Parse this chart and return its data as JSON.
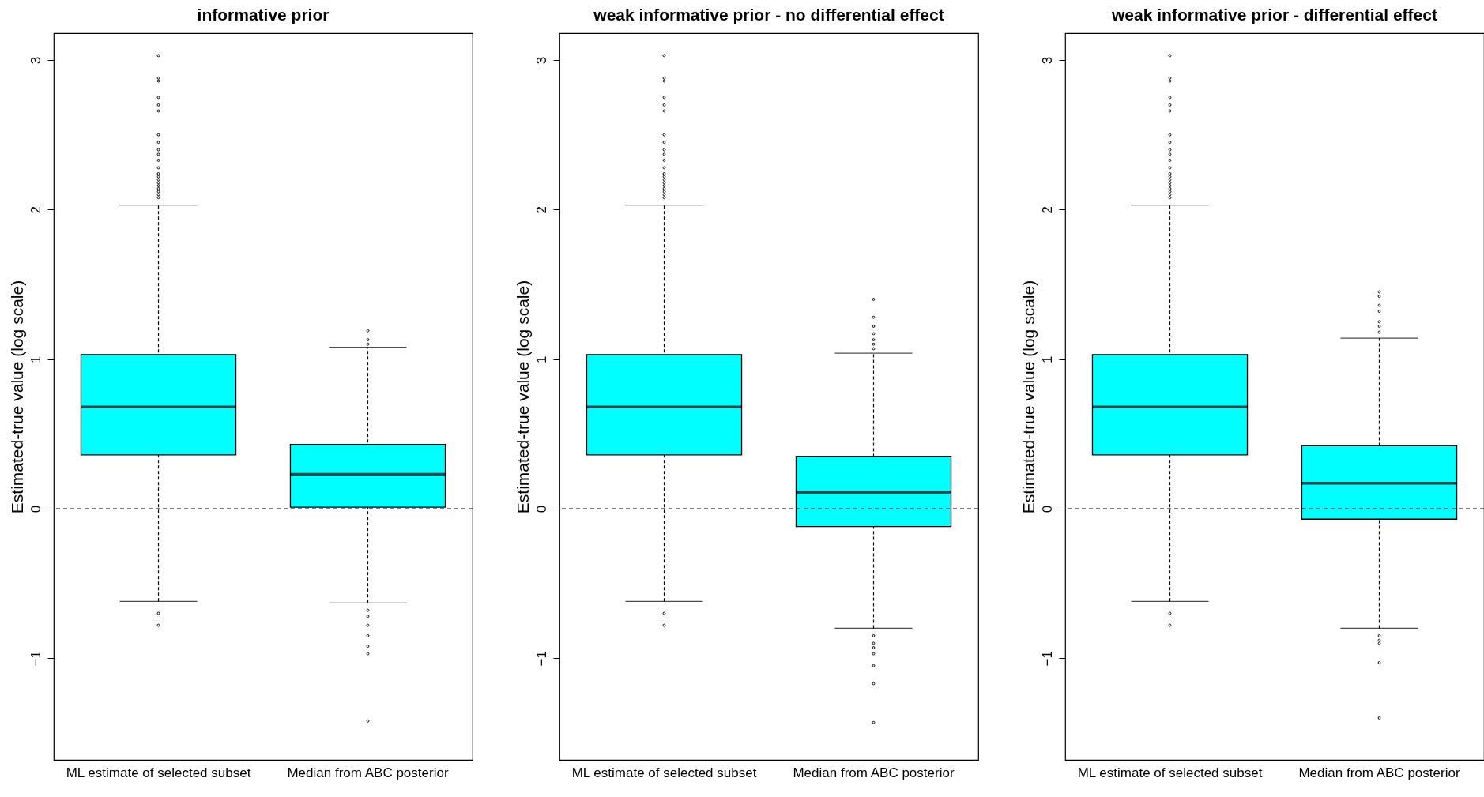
{
  "chart_data": [
    {
      "type": "box",
      "title": "informative prior",
      "ylabel": "Estimated-true value (log scale)",
      "categories": [
        "ML estimate of selected subset",
        "Median from ABC posterior"
      ],
      "color": "#00ffff",
      "ylim": [
        -1.68,
        3.18
      ],
      "yticks": [
        -1,
        0,
        1,
        2,
        3
      ],
      "ref_lines": [
        {
          "axis": "y",
          "value": 0,
          "line_style": "dashed"
        }
      ],
      "boxes": [
        {
          "low": -0.62,
          "q1": 0.36,
          "median": 0.68,
          "q3": 1.03,
          "high": 2.03,
          "outliers": [
            3.03,
            2.88,
            2.86,
            2.75,
            2.7,
            2.66,
            2.5,
            2.45,
            2.4,
            2.37,
            2.33,
            2.28,
            2.24,
            2.22,
            2.2,
            2.18,
            2.16,
            2.14,
            2.12,
            2.1,
            2.08,
            -0.7,
            -0.78
          ]
        },
        {
          "low": -0.63,
          "q1": 0.01,
          "median": 0.23,
          "q3": 0.43,
          "high": 1.08,
          "outliers": [
            1.19,
            1.13,
            1.1,
            -0.68,
            -0.72,
            -0.78,
            -0.85,
            -0.92,
            -0.97,
            -1.42
          ]
        }
      ]
    },
    {
      "type": "box",
      "title": "weak informative prior - no differential effect",
      "ylabel": "Estimated-true value (log scale)",
      "categories": [
        "ML estimate of selected subset",
        "Median from ABC posterior"
      ],
      "color": "#00ffff",
      "ylim": [
        -1.68,
        3.18
      ],
      "yticks": [
        -1,
        0,
        1,
        2,
        3
      ],
      "ref_lines": [
        {
          "axis": "y",
          "value": 0,
          "line_style": "dashed"
        }
      ],
      "boxes": [
        {
          "low": -0.62,
          "q1": 0.36,
          "median": 0.68,
          "q3": 1.03,
          "high": 2.03,
          "outliers": [
            3.03,
            2.88,
            2.86,
            2.75,
            2.7,
            2.66,
            2.5,
            2.45,
            2.4,
            2.37,
            2.33,
            2.28,
            2.24,
            2.22,
            2.2,
            2.18,
            2.16,
            2.14,
            2.12,
            2.1,
            2.08,
            -0.7,
            -0.78
          ]
        },
        {
          "low": -0.8,
          "q1": -0.12,
          "median": 0.11,
          "q3": 0.35,
          "high": 1.04,
          "outliers": [
            1.4,
            1.28,
            1.22,
            1.17,
            1.13,
            1.1,
            1.07,
            -0.85,
            -0.9,
            -0.93,
            -0.97,
            -1.05,
            -1.17,
            -1.43
          ]
        }
      ]
    },
    {
      "type": "box",
      "title": "weak informative prior - differential effect",
      "ylabel": "Estimated-true value (log scale)",
      "categories": [
        "ML estimate of selected subset",
        "Median from ABC posterior"
      ],
      "color": "#00ffff",
      "ylim": [
        -1.68,
        3.18
      ],
      "yticks": [
        -1,
        0,
        1,
        2,
        3
      ],
      "ref_lines": [
        {
          "axis": "y",
          "value": 0,
          "line_style": "dashed"
        }
      ],
      "boxes": [
        {
          "low": -0.62,
          "q1": 0.36,
          "median": 0.68,
          "q3": 1.03,
          "high": 2.03,
          "outliers": [
            3.03,
            2.88,
            2.86,
            2.75,
            2.7,
            2.66,
            2.5,
            2.45,
            2.4,
            2.37,
            2.33,
            2.28,
            2.24,
            2.22,
            2.2,
            2.18,
            2.16,
            2.14,
            2.12,
            2.1,
            2.08,
            -0.7,
            -0.78
          ]
        },
        {
          "low": -0.8,
          "q1": -0.07,
          "median": 0.17,
          "q3": 0.42,
          "high": 1.14,
          "outliers": [
            1.45,
            1.42,
            1.36,
            1.32,
            1.25,
            1.22,
            1.18,
            -0.85,
            -0.88,
            -0.9,
            -1.03,
            -1.4
          ]
        }
      ]
    }
  ]
}
